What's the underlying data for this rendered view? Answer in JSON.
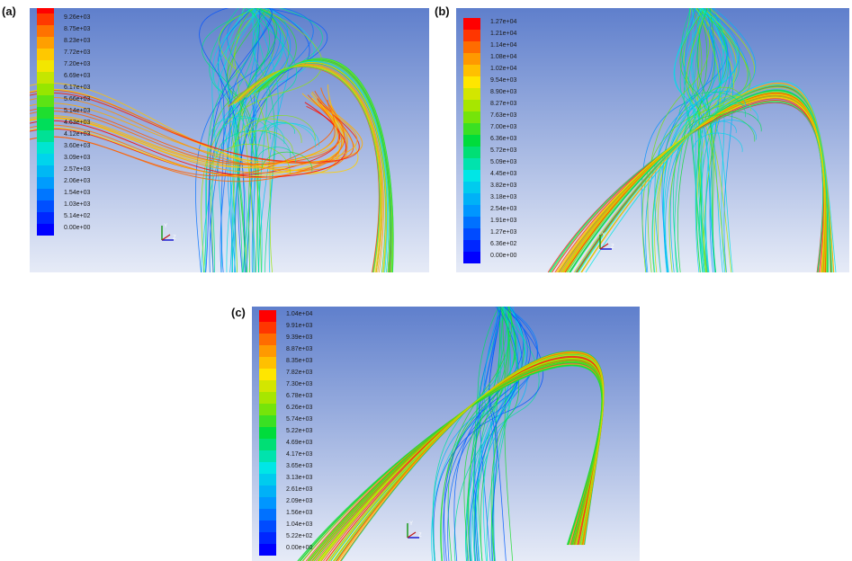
{
  "panels": [
    {
      "label": "(a)",
      "legend": [
        "9.77e+03",
        "9.26e+03",
        "8.75e+03",
        "8.23e+03",
        "7.72e+03",
        "7.20e+03",
        "6.69e+03",
        "6.17e+03",
        "5.66e+03",
        "5.14e+03",
        "4.63e+03",
        "4.12e+03",
        "3.60e+03",
        "3.09e+03",
        "2.57e+03",
        "2.06e+03",
        "1.54e+03",
        "1.03e+03",
        "5.14e+02",
        "0.00e+00"
      ]
    },
    {
      "label": "(b)",
      "legend": [
        "1.27e+04",
        "1.21e+04",
        "1.14e+04",
        "1.08e+04",
        "1.02e+04",
        "9.54e+03",
        "8.90e+03",
        "8.27e+03",
        "7.63e+03",
        "7.00e+03",
        "6.36e+03",
        "5.72e+03",
        "5.09e+03",
        "4.45e+03",
        "3.82e+03",
        "3.18e+03",
        "2.54e+03",
        "1.91e+03",
        "1.27e+03",
        "6.36e+02",
        "0.00e+00"
      ]
    },
    {
      "label": "(c)",
      "legend": [
        "1.04e+04",
        "9.91e+03",
        "9.39e+03",
        "8.87e+03",
        "8.35e+03",
        "7.82e+03",
        "7.30e+03",
        "6.78e+03",
        "6.26e+03",
        "5.74e+03",
        "5.22e+03",
        "4.69e+03",
        "4.17e+03",
        "3.65e+03",
        "3.13e+03",
        "2.61e+03",
        "2.09e+03",
        "1.56e+03",
        "1.04e+03",
        "5.22e+02",
        "0.00e+00"
      ]
    }
  ],
  "axes_labels": {
    "y": "Y",
    "z": "Z",
    "x": "X"
  },
  "colors": {
    "background_top": "#5f7fcc",
    "background_bottom": "#e6ebf7",
    "scale_high": "#ff0000",
    "scale_low": "#0000ff"
  }
}
